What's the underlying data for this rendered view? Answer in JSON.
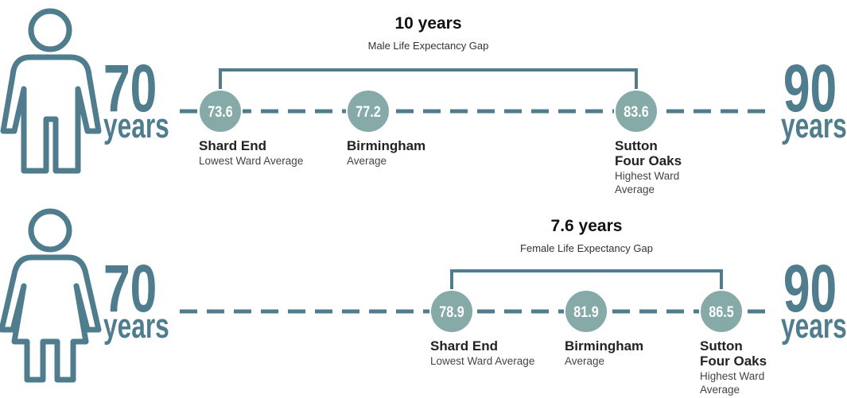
{
  "rows": [
    {
      "gap_title": "10 years",
      "gap_label": "Male Life Expectancy Gap",
      "left_number": "70",
      "left_unit": "years",
      "right_number": "90",
      "right_unit": "years",
      "points": [
        {
          "value": "73.6",
          "name": [
            "Shard End"
          ],
          "description": [
            "Lowest Ward Average"
          ]
        },
        {
          "value": "77.2",
          "name": [
            "Birmingham"
          ],
          "description": [
            "Average"
          ]
        },
        {
          "value": "83.6",
          "name": [
            "Sutton",
            "Four Oaks"
          ],
          "description": [
            "Highest Ward",
            "Average"
          ]
        }
      ]
    },
    {
      "gap_title": "7.6 years",
      "gap_label": "Female Life Expectancy Gap",
      "left_number": "70",
      "left_unit": "years",
      "right_number": "90",
      "right_unit": "years",
      "points": [
        {
          "value": "78.9",
          "name": [
            "Shard End"
          ],
          "description": [
            "Lowest Ward Average"
          ]
        },
        {
          "value": "81.9",
          "name": [
            "Birmingham"
          ],
          "description": [
            "Average"
          ]
        },
        {
          "value": "86.5",
          "name": [
            "Sutton",
            "Four Oaks"
          ],
          "description": [
            "Highest Ward",
            "Average"
          ]
        }
      ]
    }
  ]
}
